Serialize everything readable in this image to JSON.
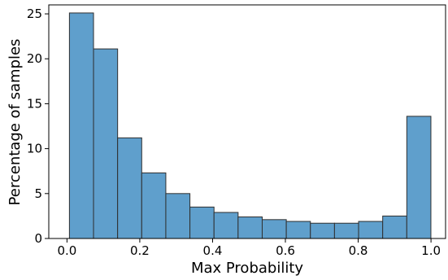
{
  "chart_data": {
    "type": "bar",
    "title": "",
    "xlabel": "Max Probability",
    "ylabel": "Percentage of samples",
    "xlim": [
      -0.05,
      1.04
    ],
    "ylim": [
      0,
      26
    ],
    "grid": false,
    "legend": "none",
    "bar_color": "#5f9fcc",
    "edge_color": "#2f2f2f",
    "bin_edges": [
      0.0067,
      0.0729,
      0.1391,
      0.2053,
      0.2715,
      0.3377,
      0.4039,
      0.4701,
      0.5363,
      0.6025,
      0.6687,
      0.7349,
      0.8011,
      0.8673,
      0.9335,
      0.9997
    ],
    "values": [
      25.1,
      21.1,
      11.2,
      7.3,
      5.0,
      3.5,
      2.9,
      2.4,
      2.1,
      1.9,
      1.7,
      1.7,
      1.9,
      2.5,
      13.6
    ],
    "xticks": [
      "0.0",
      "0.2",
      "0.4",
      "0.6",
      "0.8",
      "1.0"
    ],
    "xtick_values": [
      0.0,
      0.2,
      0.4,
      0.6,
      0.8,
      1.0
    ],
    "yticks": [
      "0",
      "5",
      "10",
      "15",
      "20",
      "25"
    ],
    "ytick_values": [
      0,
      5,
      10,
      15,
      20,
      25
    ]
  }
}
